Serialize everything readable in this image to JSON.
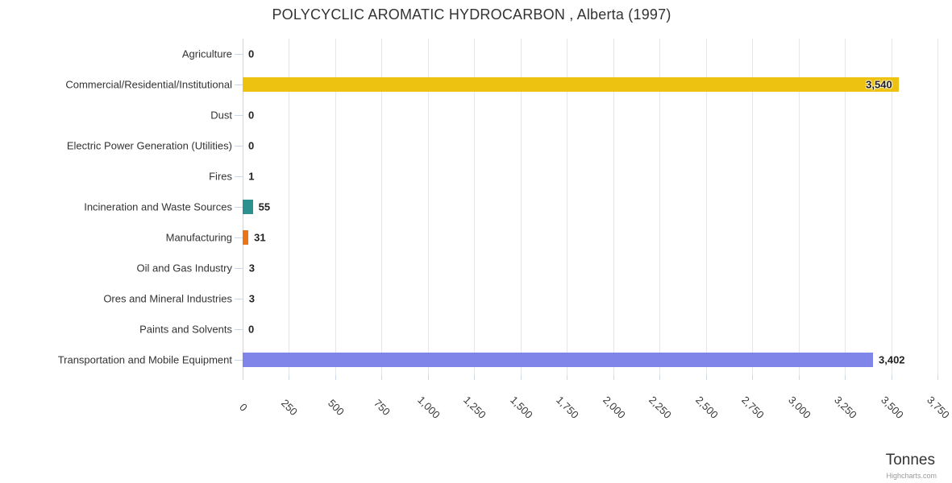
{
  "header": {
    "title": "POLYCYCLIC AROMATIC HYDROCARBON , Alberta (1997)"
  },
  "chart_data": {
    "type": "bar",
    "title": "POLYCYCLIC AROMATIC HYDROCARBON , Alberta (1997)",
    "categories": [
      "Agriculture",
      "Commercial/Residential/Institutional",
      "Dust",
      "Electric Power Generation (Utilities)",
      "Fires",
      "Incineration and Waste Sources",
      "Manufacturing",
      "Oil and Gas Industry",
      "Ores and Mineral Industries",
      "Paints and Solvents",
      "Transportation and Mobile Equipment"
    ],
    "values": [
      0,
      3540,
      0,
      0,
      1,
      55,
      31,
      3,
      3,
      0,
      3402
    ],
    "value_labels": [
      "0",
      "3,540",
      "0",
      "0",
      "1",
      "55",
      "31",
      "3",
      "3",
      "0",
      "3,402"
    ],
    "bar_colors": [
      null,
      "#edc211",
      null,
      null,
      null,
      "#2b908f",
      "#e8751a",
      null,
      null,
      null,
      "#8085e9"
    ],
    "xlabel": "Tonnes",
    "xlim": [
      0,
      3750
    ],
    "tick_interval": 250,
    "x_tick_labels": [
      "0",
      "250",
      "500",
      "750",
      "1,000",
      "1,250",
      "1,500",
      "1,750",
      "2,000",
      "2,250",
      "2,500",
      "2,750",
      "3,000",
      "3,250",
      "3,500",
      "3,750"
    ],
    "legend": "off",
    "grid": "on",
    "credit": "Highcharts.com"
  },
  "styles": {
    "grid_color": "#e6e6e6",
    "axis_line_color": "#ccd6eb",
    "tick_color": "#ccd6eb",
    "category_label_color": "#333333",
    "tick_label_color": "#3a3a3a",
    "title_color": "#333333",
    "data_label_color": "#222222",
    "credit_color": "#999999",
    "background": "#ffffff"
  }
}
